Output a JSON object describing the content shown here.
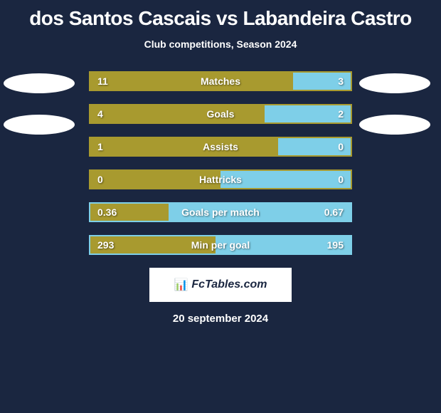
{
  "title": "dos Santos Cascais vs Labandeira Castro",
  "subtitle": "Club competitions, Season 2024",
  "colors": {
    "background": "#1a2640",
    "left_bar": "#a89a2f",
    "right_bar": "#7ecfe8",
    "ellipse": "#ffffff",
    "text": "#ffffff"
  },
  "stats": [
    {
      "label": "Matches",
      "left_value": "11",
      "right_value": "3",
      "left_pct": 78,
      "right_pct": 22,
      "border_color": "#a89a2f",
      "show_ellipses": true
    },
    {
      "label": "Goals",
      "left_value": "4",
      "right_value": "2",
      "left_pct": 67,
      "right_pct": 33,
      "border_color": "#a89a2f",
      "show_ellipses": true
    },
    {
      "label": "Assists",
      "left_value": "1",
      "right_value": "0",
      "left_pct": 72,
      "right_pct": 28,
      "border_color": "#a89a2f",
      "show_ellipses": false
    },
    {
      "label": "Hattricks",
      "left_value": "0",
      "right_value": "0",
      "left_pct": 50,
      "right_pct": 50,
      "border_color": "#a89a2f",
      "show_ellipses": false
    },
    {
      "label": "Goals per match",
      "left_value": "0.36",
      "right_value": "0.67",
      "left_pct": 30,
      "right_pct": 70,
      "border_color": "#7ecfe8",
      "show_ellipses": false
    },
    {
      "label": "Min per goal",
      "left_value": "293",
      "right_value": "195",
      "left_pct": 48,
      "right_pct": 52,
      "border_color": "#7ecfe8",
      "show_ellipses": false
    }
  ],
  "logo_text": "FcTables.com",
  "date": "20 september 2024"
}
